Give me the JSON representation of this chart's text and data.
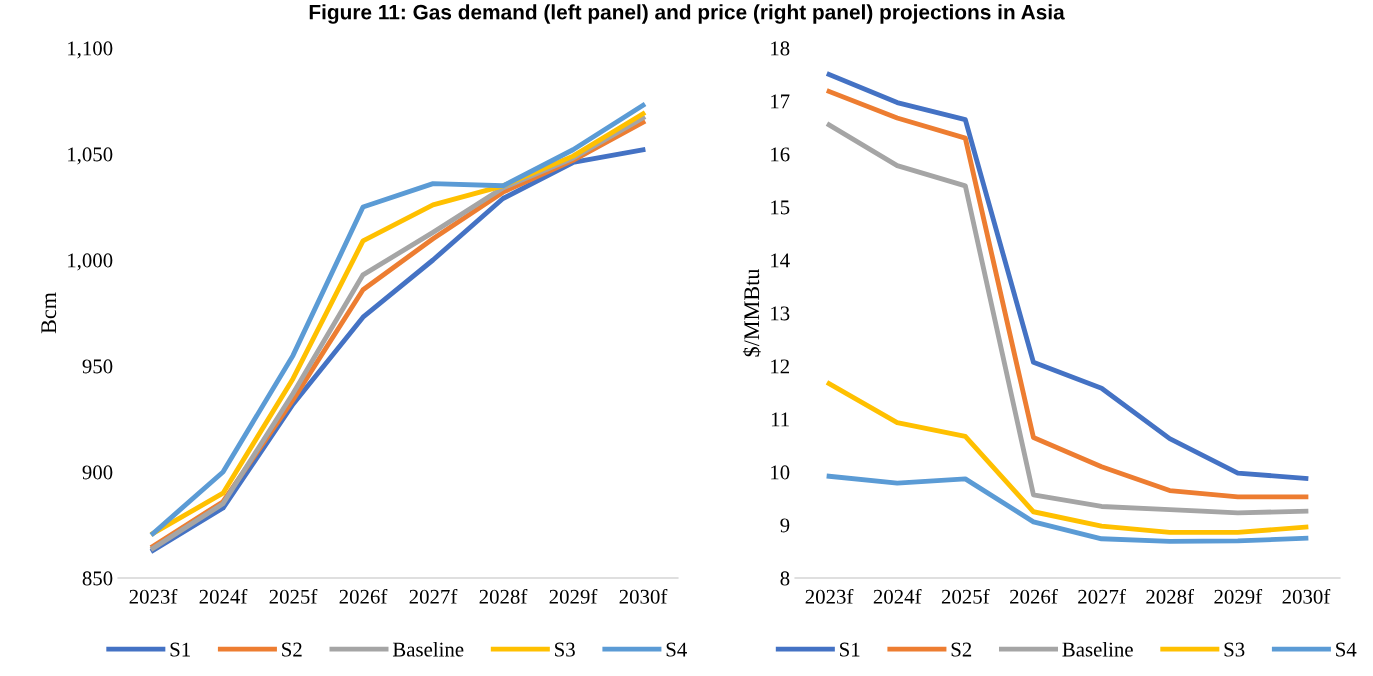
{
  "chart_data": [
    {
      "type": "line",
      "title": "Figure 11: Gas demand (left panel) and price (right panel) projections in Asia",
      "ylabel": "Bcm",
      "categories": [
        "2023f",
        "2024f",
        "2025f",
        "2026f",
        "2027f",
        "2028f",
        "2029f",
        "2030f"
      ],
      "ylim": [
        850,
        1100
      ],
      "yticks": [
        {
          "value": 850,
          "label": "850"
        },
        {
          "value": 900,
          "label": "900"
        },
        {
          "value": 950,
          "label": "950"
        },
        {
          "value": 1000,
          "label": "1,000"
        },
        {
          "value": 1050,
          "label": "1,050"
        },
        {
          "value": 1100,
          "label": "1,100"
        }
      ],
      "legend": "bottom",
      "grid": false,
      "marker": "none",
      "line_style": "solid",
      "series": [
        {
          "name": "S1",
          "color": "#4472c4",
          "values": [
            863,
            883,
            932,
            973,
            1000,
            1029,
            1046,
            1052
          ]
        },
        {
          "name": "S2",
          "color": "#ed7d31",
          "values": [
            865,
            886,
            934,
            986,
            1010,
            1032,
            1047,
            1065
          ]
        },
        {
          "name": "Baseline",
          "color": "#a5a5a5",
          "values": [
            864,
            885,
            937,
            993,
            1013,
            1034,
            1048,
            1067
          ]
        },
        {
          "name": "S3",
          "color": "#ffc000",
          "values": [
            871,
            890,
            944,
            1009,
            1026,
            1035,
            1049,
            1069
          ]
        },
        {
          "name": "S4",
          "color": "#5b9bd5",
          "values": [
            871,
            900,
            955,
            1025,
            1036,
            1035,
            1052,
            1073
          ]
        }
      ]
    },
    {
      "type": "line",
      "ylabel": "$/MMBtu",
      "categories": [
        "2023f",
        "2024f",
        "2025f",
        "2026f",
        "2027f",
        "2028f",
        "2029f",
        "2030f"
      ],
      "ylim": [
        8,
        18
      ],
      "yticks": [
        8,
        9,
        10,
        11,
        12,
        13,
        14,
        15,
        16,
        17,
        18
      ],
      "legend": "bottom",
      "grid": false,
      "marker": "none",
      "line_style": "solid",
      "series": [
        {
          "name": "S1",
          "color": "#4472c4",
          "values": [
            17.5,
            16.97,
            16.65,
            12.07,
            11.58,
            10.63,
            9.98,
            9.88
          ]
        },
        {
          "name": "S2",
          "color": "#ed7d31",
          "values": [
            17.18,
            16.68,
            16.3,
            10.65,
            10.1,
            9.65,
            9.53,
            9.53
          ]
        },
        {
          "name": "Baseline",
          "color": "#a5a5a5",
          "values": [
            16.55,
            15.78,
            15.4,
            9.57,
            9.35,
            9.29,
            9.23,
            9.26
          ]
        },
        {
          "name": "S3",
          "color": "#ffc000",
          "values": [
            11.67,
            10.93,
            10.67,
            9.25,
            8.98,
            8.86,
            8.86,
            8.96
          ]
        },
        {
          "name": "S4",
          "color": "#5b9bd5",
          "values": [
            9.92,
            9.79,
            9.87,
            9.06,
            8.74,
            8.69,
            8.7,
            8.75
          ]
        }
      ]
    }
  ]
}
